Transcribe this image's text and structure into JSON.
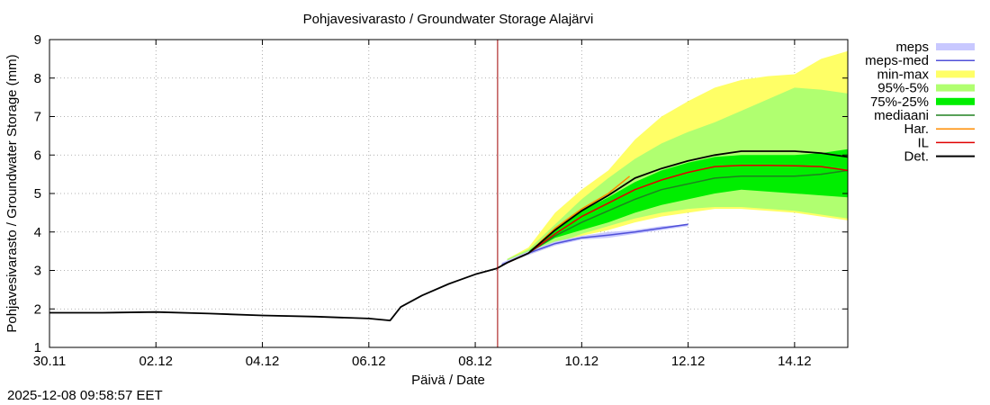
{
  "chart_data": {
    "type": "line",
    "title": "Pohjavesivarasto / Groundwater Storage   Alajärvi",
    "xlabel": "Päivä / Date",
    "ylabel": "Pohjavesivarasto / Groundwater Storage (mm)",
    "x_unit": "days since 30.11",
    "xlim": [
      0,
      15
    ],
    "ylim": [
      1,
      9
    ],
    "xticks": [
      {
        "day": 0,
        "label": "30.11"
      },
      {
        "day": 2,
        "label": "02.12"
      },
      {
        "day": 4,
        "label": "04.12"
      },
      {
        "day": 6,
        "label": "06.12"
      },
      {
        "day": 8,
        "label": "08.12"
      },
      {
        "day": 10,
        "label": "10.12"
      },
      {
        "day": 12,
        "label": "12.12"
      },
      {
        "day": 14,
        "label": "14.12"
      }
    ],
    "yticks": [
      1,
      2,
      3,
      4,
      5,
      6,
      7,
      8,
      9
    ],
    "grid": true,
    "forecast_start_day": 8.42,
    "legend_position": "right",
    "legend": [
      {
        "key": "meps",
        "label": "meps",
        "color": "#c8c8ff",
        "kind": "band"
      },
      {
        "key": "meps_med",
        "label": "meps-med",
        "color": "#5050d8",
        "kind": "line"
      },
      {
        "key": "minmax",
        "label": "min-max",
        "color": "#ffff66",
        "kind": "band"
      },
      {
        "key": "p95_5",
        "label": "95%-5%",
        "color": "#b0ff70",
        "kind": "band"
      },
      {
        "key": "p75_25",
        "label": "75%-25%",
        "color": "#00ee00",
        "kind": "band"
      },
      {
        "key": "mediaani",
        "label": "mediaani",
        "color": "#208020",
        "kind": "line"
      },
      {
        "key": "har",
        "label": "Har.",
        "color": "#ff8c00",
        "kind": "line"
      },
      {
        "key": "il",
        "label": "IL",
        "color": "#e00000",
        "kind": "line"
      },
      {
        "key": "det",
        "label": "Det.",
        "color": "#000000",
        "kind": "line"
      }
    ],
    "bands": {
      "minmax": {
        "x": [
          8.6,
          9.0,
          9.5,
          10.0,
          10.5,
          11.0,
          11.5,
          12.0,
          12.5,
          13.0,
          13.5,
          14.0,
          14.5,
          15.0
        ],
        "low": [
          3.2,
          3.4,
          3.65,
          3.9,
          4.05,
          4.25,
          4.4,
          4.5,
          4.6,
          4.6,
          4.55,
          4.5,
          4.4,
          4.3
        ],
        "high": [
          3.3,
          3.6,
          4.5,
          5.1,
          5.6,
          6.4,
          7.0,
          7.4,
          7.75,
          7.95,
          8.05,
          8.1,
          8.5,
          8.7
        ]
      },
      "p95_5": {
        "x": [
          8.6,
          9.0,
          9.5,
          10.0,
          10.5,
          11.0,
          11.5,
          12.0,
          12.5,
          13.0,
          13.5,
          14.0,
          14.5,
          15.0
        ],
        "low": [
          3.2,
          3.4,
          3.7,
          3.95,
          4.15,
          4.35,
          4.5,
          4.6,
          4.65,
          4.65,
          4.6,
          4.55,
          4.45,
          4.35
        ],
        "high": [
          3.3,
          3.55,
          4.2,
          4.85,
          5.4,
          5.9,
          6.3,
          6.6,
          6.85,
          7.15,
          7.45,
          7.75,
          7.7,
          7.6
        ]
      },
      "p75_25": {
        "x": [
          8.6,
          9.0,
          9.5,
          10.0,
          10.5,
          11.0,
          11.5,
          12.0,
          12.5,
          13.0,
          13.5,
          14.0,
          14.5,
          15.0
        ],
        "low": [
          3.2,
          3.45,
          3.85,
          4.05,
          4.25,
          4.5,
          4.7,
          4.85,
          5.0,
          5.1,
          5.05,
          5.0,
          4.95,
          4.9
        ],
        "high": [
          3.25,
          3.5,
          4.05,
          4.55,
          4.9,
          5.3,
          5.6,
          5.8,
          5.95,
          6.0,
          6.0,
          6.0,
          6.05,
          6.15
        ]
      },
      "meps": {
        "x": [
          8.5,
          9.0,
          9.5,
          10.0,
          10.5,
          11.0,
          11.5,
          12.0
        ],
        "low": [
          3.15,
          3.4,
          3.65,
          3.8,
          3.85,
          3.95,
          4.05,
          4.15
        ],
        "high": [
          3.2,
          3.5,
          3.75,
          3.9,
          4.0,
          4.05,
          4.15,
          4.2
        ]
      }
    },
    "series": [
      {
        "key": "det",
        "name": "Det.",
        "x": [
          0,
          1,
          2,
          3,
          4,
          5,
          6,
          6.4,
          6.6,
          7,
          7.5,
          8,
          8.4,
          8.6,
          9,
          9.5,
          10,
          10.5,
          11,
          11.5,
          12,
          12.5,
          13,
          13.5,
          14,
          14.5,
          15
        ],
        "y": [
          1.9,
          1.9,
          1.92,
          1.88,
          1.83,
          1.8,
          1.75,
          1.7,
          2.05,
          2.35,
          2.65,
          2.9,
          3.05,
          3.2,
          3.45,
          4.05,
          4.55,
          4.95,
          5.4,
          5.65,
          5.85,
          6.0,
          6.1,
          6.1,
          6.1,
          6.05,
          5.95
        ]
      },
      {
        "key": "il",
        "name": "IL",
        "x": [
          8.6,
          9,
          9.5,
          10,
          10.5,
          11,
          11.5,
          12,
          12.5,
          13,
          13.5,
          14,
          14.5,
          15
        ],
        "y": [
          3.2,
          3.45,
          3.95,
          4.4,
          4.75,
          5.1,
          5.35,
          5.55,
          5.7,
          5.73,
          5.73,
          5.72,
          5.7,
          5.6
        ]
      },
      {
        "key": "mediaani",
        "name": "mediaani",
        "x": [
          8.6,
          9,
          9.5,
          10,
          10.5,
          11,
          11.5,
          12,
          12.5,
          13,
          13.5,
          14,
          14.5,
          15
        ],
        "y": [
          3.2,
          3.45,
          3.9,
          4.25,
          4.55,
          4.85,
          5.1,
          5.25,
          5.4,
          5.45,
          5.45,
          5.45,
          5.5,
          5.6
        ]
      },
      {
        "key": "har",
        "name": "Har.",
        "x": [
          8.6,
          9,
          9.5,
          10,
          10.5,
          10.9
        ],
        "y": [
          3.2,
          3.45,
          4.1,
          4.6,
          5.0,
          5.45
        ]
      },
      {
        "key": "meps_med",
        "name": "meps-med",
        "x": [
          8.5,
          9,
          9.5,
          10,
          10.5,
          11,
          11.5,
          12
        ],
        "y": [
          3.15,
          3.45,
          3.7,
          3.85,
          3.92,
          4.0,
          4.1,
          4.2
        ]
      }
    ]
  },
  "timestamp": "2025-12-08 09:58:57 EET"
}
